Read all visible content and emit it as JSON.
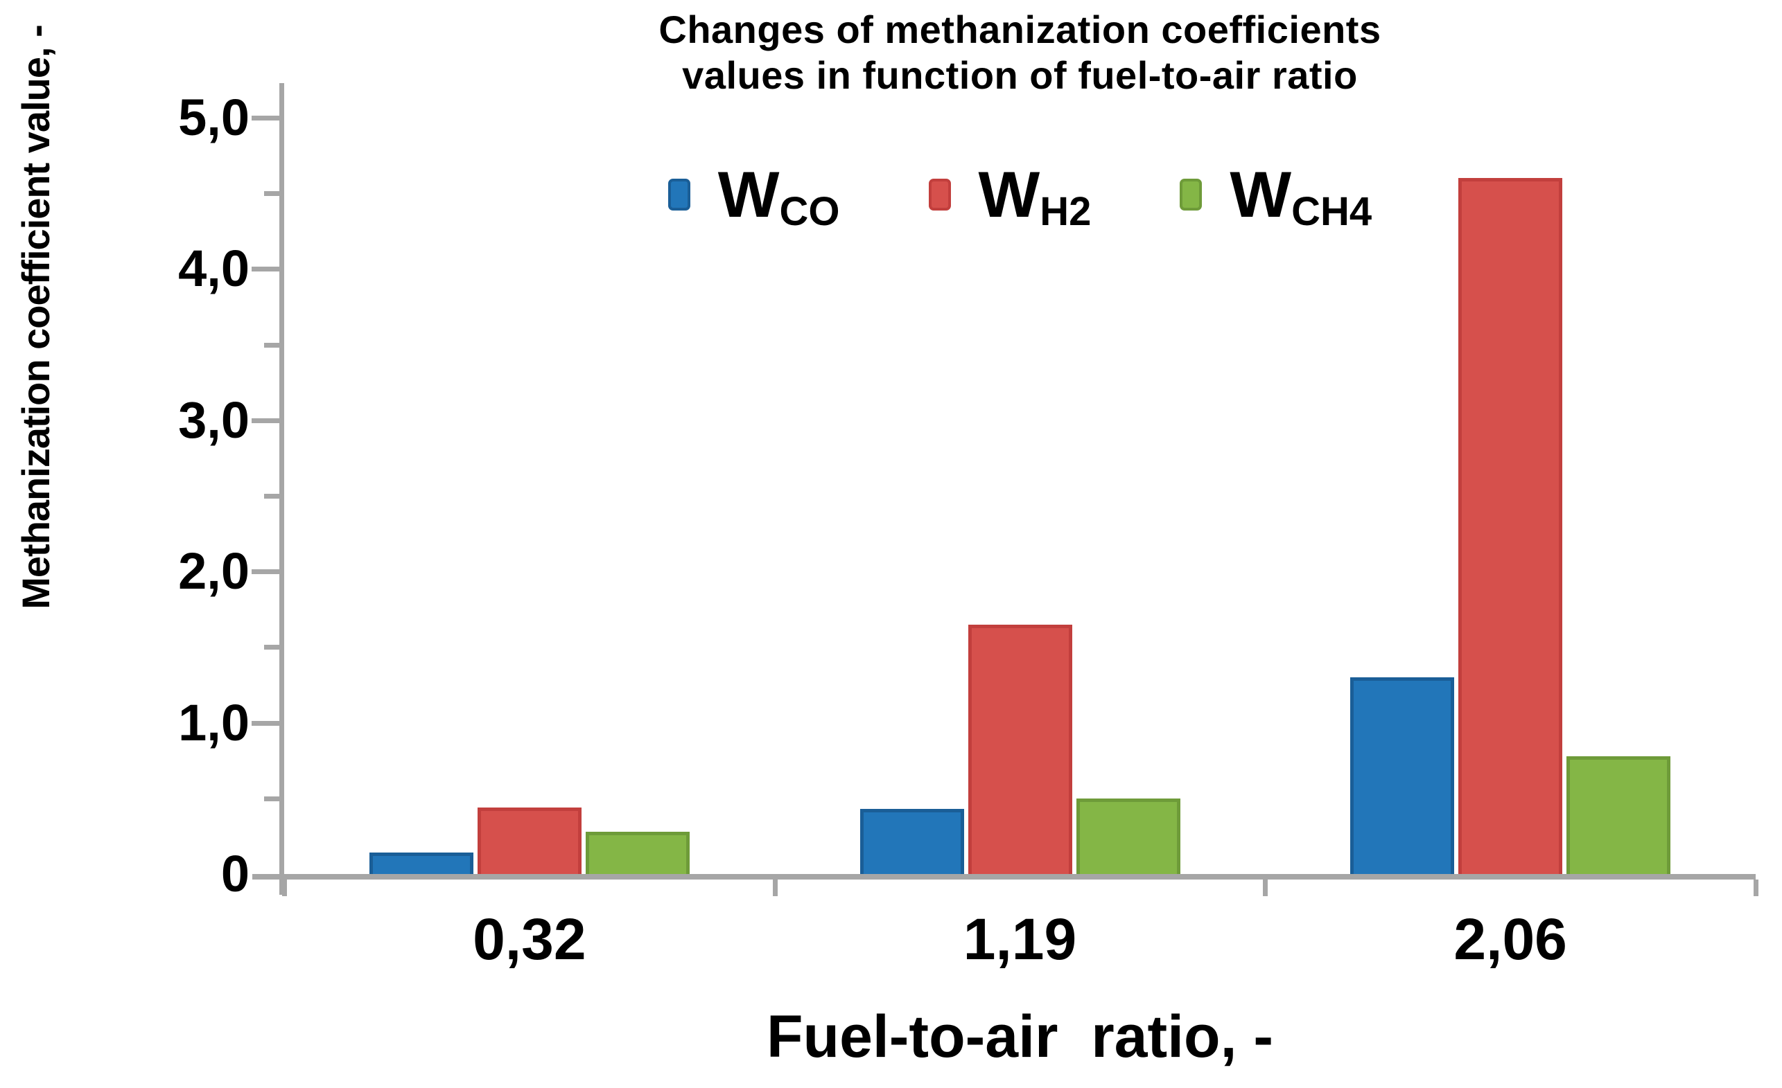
{
  "figure": {
    "title_line1": "Changes of methanization coefficients",
    "title_line2": "values in function of fuel-to-air ratio"
  },
  "chart_data": {
    "type": "bar",
    "title": "Changes of methanization coefficients values in function of fuel-to-air ratio",
    "title_lines": [
      "Changes of methanization coefficients",
      "values in function of fuel-to-air ratio"
    ],
    "xlabel": "Fuel-to-air  ratio, -",
    "ylabel": "Methanization coefficient value, -",
    "categories": [
      "0,32",
      "1,19",
      "2,06"
    ],
    "series": [
      {
        "name": "W_CO",
        "symbol": "W",
        "sub": "CO",
        "color": "#2276b9",
        "border": "#1a5e97",
        "values": [
          0.14,
          0.43,
          1.3
        ]
      },
      {
        "name": "W_H2",
        "symbol": "W",
        "sub": "H2",
        "color": "#d6504c",
        "border": "#c23f3d",
        "values": [
          0.44,
          1.65,
          4.6
        ]
      },
      {
        "name": "W_CH4",
        "symbol": "W",
        "sub": "CH4",
        "color": "#84b646",
        "border": "#6e9b39",
        "values": [
          0.28,
          0.5,
          0.78
        ]
      }
    ],
    "ylim": [
      0,
      5
    ],
    "yticks": [
      {
        "label": "5,0",
        "value": 5
      },
      {
        "label": "4,0",
        "value": 4
      },
      {
        "label": "3,0",
        "value": 3
      },
      {
        "label": "2,0",
        "value": 2
      },
      {
        "label": "1,0",
        "value": 1
      },
      {
        "label": "0",
        "value": 0
      }
    ],
    "ytick_minor_step": 0.5,
    "grid": false,
    "legend_position": "top",
    "axis_color": "#a6a6a6",
    "text_color": "#000000",
    "background_color": "#ffffff"
  }
}
